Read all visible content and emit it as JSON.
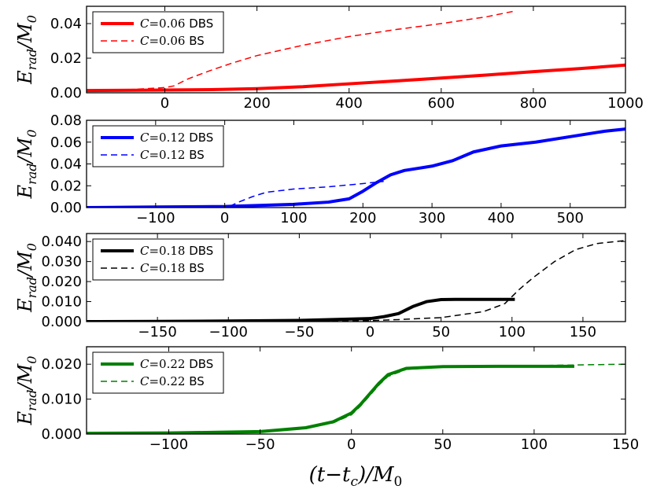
{
  "xlabel": "(t−t_c)/M_0",
  "chart_data": [
    {
      "type": "line",
      "ylabel": "E_rad/M_0",
      "xlim": [
        -170,
        1000
      ],
      "ylim": [
        0,
        0.05
      ],
      "xticks": [
        0,
        200,
        400,
        600,
        800,
        1000
      ],
      "xtick_labels": [
        "0",
        "200",
        "400",
        "600",
        "800",
        "1000"
      ],
      "yticks": [
        0,
        0.02,
        0.04
      ],
      "ytick_labels": [
        "0.00",
        "0.02",
        "0.04"
      ],
      "series": [
        {
          "name_math": "C",
          "name_value": "=0.06",
          "name_suffix": "DBS",
          "color": "#ff0000",
          "style": "solid",
          "width": 4,
          "x": [
            -170,
            -100,
            0,
            100,
            200,
            300,
            400,
            500,
            600,
            700,
            800,
            900,
            1000
          ],
          "y": [
            0.0013,
            0.0014,
            0.0016,
            0.0018,
            0.0024,
            0.0035,
            0.0052,
            0.0068,
            0.0085,
            0.0103,
            0.0122,
            0.014,
            0.016
          ]
        },
        {
          "name_math": "C",
          "name_value": "=0.06",
          "name_suffix": "BS",
          "color": "#ff0000",
          "style": "dashed",
          "width": 1.5,
          "x": [
            -170,
            -100,
            0,
            20,
            50,
            100,
            150,
            200,
            300,
            400,
            500,
            600,
            700,
            755
          ],
          "y": [
            0.001,
            0.0015,
            0.003,
            0.004,
            0.008,
            0.013,
            0.0175,
            0.0215,
            0.0275,
            0.0325,
            0.0365,
            0.04,
            0.044,
            0.047
          ]
        }
      ]
    },
    {
      "type": "line",
      "ylabel": "E_rad/M_0",
      "xlim": [
        -200,
        580
      ],
      "ylim": [
        0,
        0.08
      ],
      "xticks": [
        -100,
        0,
        100,
        200,
        300,
        400,
        500
      ],
      "xtick_labels": [
        "−100",
        "0",
        "100",
        "200",
        "300",
        "400",
        "500"
      ],
      "yticks": [
        0,
        0.02,
        0.04,
        0.06,
        0.08
      ],
      "ytick_labels": [
        "0.00",
        "0.02",
        "0.04",
        "0.06",
        "0.08"
      ],
      "series": [
        {
          "name_math": "C",
          "name_value": "=0.12",
          "name_suffix": "DBS",
          "color": "#0000ff",
          "style": "solid",
          "width": 4,
          "x": [
            -200,
            -100,
            0,
            100,
            150,
            180,
            200,
            220,
            240,
            260,
            280,
            300,
            330,
            360,
            400,
            450,
            500,
            550,
            580
          ],
          "y": [
            0.0,
            0.0005,
            0.001,
            0.003,
            0.005,
            0.008,
            0.015,
            0.023,
            0.03,
            0.034,
            0.036,
            0.038,
            0.043,
            0.051,
            0.0565,
            0.06,
            0.065,
            0.07,
            0.072
          ]
        },
        {
          "name_math": "C",
          "name_value": "=0.12",
          "name_suffix": "BS",
          "color": "#0000ff",
          "style": "dashed",
          "width": 1.5,
          "x": [
            -200,
            -100,
            0,
            10,
            20,
            40,
            60,
            100,
            150,
            200,
            230
          ],
          "y": [
            0.0,
            0.0002,
            0.0008,
            0.002,
            0.005,
            0.01,
            0.014,
            0.017,
            0.019,
            0.022,
            0.024
          ]
        }
      ]
    },
    {
      "type": "line",
      "ylabel": "E_rad/M_0",
      "xlim": [
        -200,
        180
      ],
      "ylim": [
        0,
        0.044
      ],
      "xticks": [
        -150,
        -100,
        -50,
        0,
        50,
        100,
        150
      ],
      "xtick_labels": [
        "−150",
        "−100",
        "−50",
        "0",
        "50",
        "100",
        "150"
      ],
      "yticks": [
        0,
        0.01,
        0.02,
        0.03,
        0.04
      ],
      "ytick_labels": [
        "0.000",
        "0.010",
        "0.020",
        "0.030",
        "0.040"
      ],
      "series": [
        {
          "name_math": "C",
          "name_value": "=0.18",
          "name_suffix": "DBS",
          "color": "#000000",
          "style": "solid",
          "width": 4,
          "x": [
            -200,
            -150,
            -100,
            -50,
            0,
            10,
            20,
            30,
            40,
            50,
            60,
            80,
            102
          ],
          "y": [
            0.0,
            0.0001,
            0.0003,
            0.0006,
            0.0015,
            0.0025,
            0.004,
            0.0075,
            0.01,
            0.011,
            0.0111,
            0.0111,
            0.0111
          ]
        },
        {
          "name_math": "C",
          "name_value": "=0.18",
          "name_suffix": "BS",
          "color": "#000000",
          "style": "dashed",
          "width": 1.5,
          "x": [
            -200,
            -100,
            0,
            20,
            50,
            80,
            95,
            105,
            115,
            130,
            145,
            160,
            180
          ],
          "y": [
            0.0,
            0.0001,
            0.0005,
            0.001,
            0.002,
            0.005,
            0.009,
            0.016,
            0.022,
            0.03,
            0.036,
            0.039,
            0.0405
          ]
        }
      ]
    },
    {
      "type": "line",
      "ylabel": "E_rad/M_0",
      "xlim": [
        -145,
        150
      ],
      "ylim": [
        0,
        0.025
      ],
      "xticks": [
        -100,
        -50,
        0,
        50,
        100,
        150
      ],
      "xtick_labels": [
        "−100",
        "−50",
        "0",
        "50",
        "100",
        "150"
      ],
      "yticks": [
        0,
        0.01,
        0.02
      ],
      "ytick_labels": [
        "0.000",
        "0.010",
        "0.020"
      ],
      "series": [
        {
          "name_math": "C",
          "name_value": "=0.22",
          "name_suffix": "DBS",
          "color": "#008000",
          "style": "solid",
          "width": 4,
          "x": [
            -145,
            -100,
            -50,
            -25,
            -10,
            0,
            5,
            10,
            15,
            20,
            30,
            50,
            80,
            122
          ],
          "y": [
            0.0002,
            0.0003,
            0.0007,
            0.0018,
            0.0035,
            0.006,
            0.0085,
            0.0115,
            0.0145,
            0.017,
            0.0188,
            0.0193,
            0.0194,
            0.0194
          ]
        },
        {
          "name_math": "C",
          "name_value": "=0.22",
          "name_suffix": "BS",
          "color": "#008000",
          "style": "dashed",
          "width": 1.5,
          "x": [
            -145,
            -100,
            -50,
            -25,
            -10,
            0,
            5,
            10,
            15,
            20,
            30,
            50,
            100,
            150
          ],
          "y": [
            0.0002,
            0.0003,
            0.0007,
            0.0016,
            0.0032,
            0.0055,
            0.008,
            0.011,
            0.014,
            0.0165,
            0.0185,
            0.0192,
            0.0196,
            0.02
          ]
        }
      ]
    }
  ]
}
